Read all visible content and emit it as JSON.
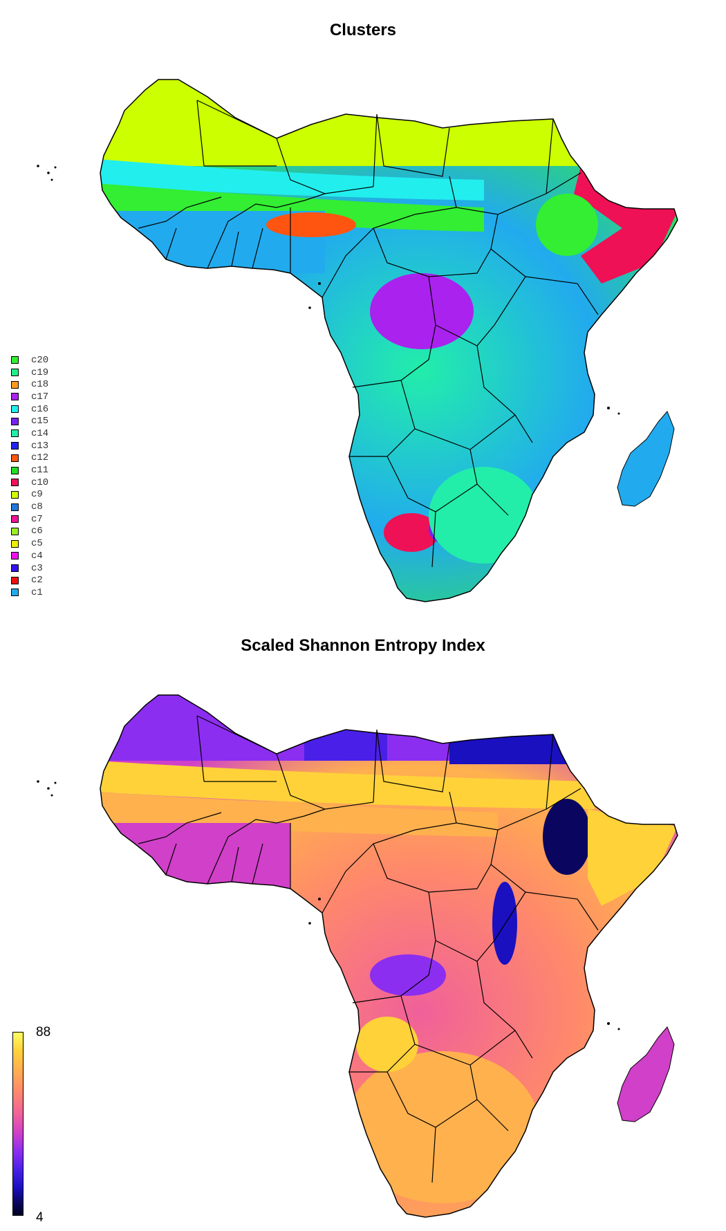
{
  "clusters_panel": {
    "title": "Clusters",
    "legend": [
      {
        "label": "c20",
        "color": "#33ee33"
      },
      {
        "label": "c19",
        "color": "#22ee88"
      },
      {
        "label": "c18",
        "color": "#ff9922"
      },
      {
        "label": "c17",
        "color": "#aa22ee"
      },
      {
        "label": "c16",
        "color": "#22eeee"
      },
      {
        "label": "c15",
        "color": "#7722ee"
      },
      {
        "label": "c14",
        "color": "#22eeaa"
      },
      {
        "label": "c13",
        "color": "#2222ee"
      },
      {
        "label": "c12",
        "color": "#ff5511"
      },
      {
        "label": "c11",
        "color": "#22dd22"
      },
      {
        "label": "c10",
        "color": "#ee1155"
      },
      {
        "label": "c9",
        "color": "#ccff00"
      },
      {
        "label": "c8",
        "color": "#2277dd"
      },
      {
        "label": "c7",
        "color": "#ee1199"
      },
      {
        "label": "c6",
        "color": "#99ee22"
      },
      {
        "label": "c5",
        "color": "#eeee00"
      },
      {
        "label": "c4",
        "color": "#ee11ee"
      },
      {
        "label": "c3",
        "color": "#3311ee"
      },
      {
        "label": "c2",
        "color": "#ee1111"
      },
      {
        "label": "c1",
        "color": "#22aaee"
      }
    ]
  },
  "entropy_panel": {
    "title": "Scaled Shannon Entropy Index",
    "scale_max": "88",
    "scale_min": "4",
    "ramp_colors": [
      "#ffff66",
      "#ffd23a",
      "#ffb14e",
      "#ff8a6a",
      "#f0609a",
      "#d040c8",
      "#8c2ef0",
      "#4a20e8",
      "#1a10c0",
      "#0a0660",
      "#000022"
    ]
  }
}
